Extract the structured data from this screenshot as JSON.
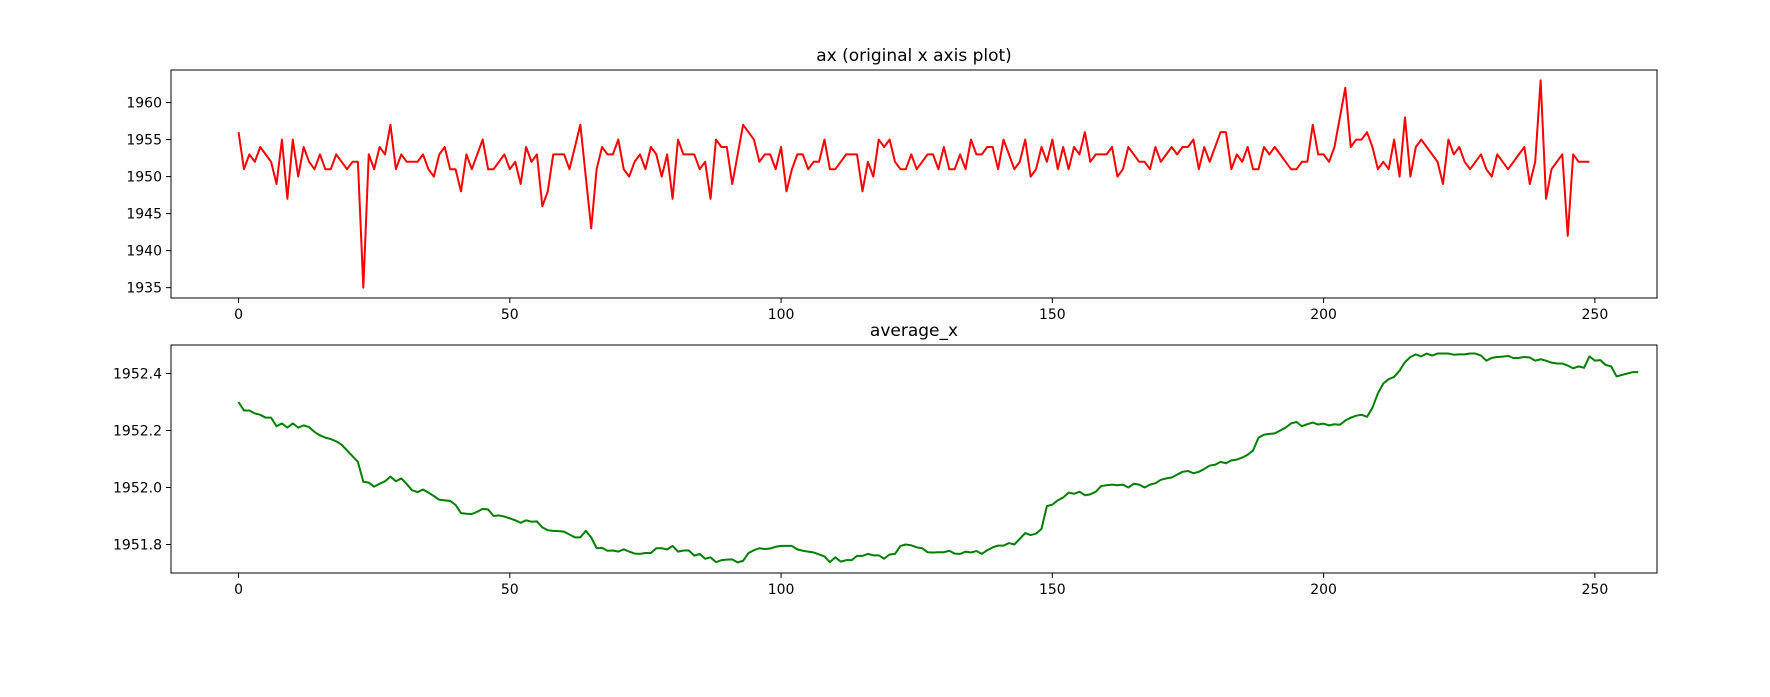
{
  "chart_data": [
    {
      "type": "line",
      "title": "ax (original x axis plot)",
      "xlabel": "",
      "ylabel": "",
      "xlim": [
        -12.45,
        261.45
      ],
      "ylim": [
        1933.6,
        1964.4
      ],
      "xticks": [
        0,
        50,
        100,
        150,
        200,
        250
      ],
      "yticks": [
        1935,
        1940,
        1945,
        1950,
        1955,
        1960
      ],
      "grid": false,
      "series": [
        {
          "color": "#ff0000",
          "x_start": 0,
          "x_step": 1,
          "values": [
            1956,
            1951,
            1953,
            1952,
            1954,
            1953,
            1952,
            1949,
            1955,
            1947,
            1955,
            1950,
            1954,
            1952,
            1951,
            1953,
            1951,
            1951,
            1953,
            1952,
            1951,
            1952,
            1952,
            1935,
            1953,
            1951,
            1954,
            1953,
            1957,
            1951,
            1953,
            1952,
            1952,
            1952,
            1953,
            1951,
            1950,
            1953,
            1954,
            1951,
            1951,
            1948,
            1953,
            1951,
            1953,
            1955,
            1951,
            1951,
            1952,
            1953,
            1951,
            1952,
            1949,
            1954,
            1952,
            1953,
            1946,
            1948,
            1953,
            1953,
            1953,
            1951,
            1954,
            1957,
            1950,
            1943,
            1951,
            1954,
            1953,
            1953,
            1955,
            1951,
            1950,
            1952,
            1953,
            1951,
            1954,
            1953,
            1950,
            1953,
            1947,
            1955,
            1953,
            1953,
            1953,
            1951,
            1952,
            1947,
            1955,
            1954,
            1954,
            1949,
            1953,
            1957,
            1956,
            1955,
            1952,
            1953,
            1953,
            1951,
            1954,
            1948,
            1951,
            1953,
            1953,
            1951,
            1952,
            1952,
            1955,
            1951,
            1951,
            1952,
            1953,
            1953,
            1953,
            1948,
            1952,
            1950,
            1955,
            1954,
            1955,
            1952,
            1951,
            1951,
            1953,
            1951,
            1952,
            1953,
            1953,
            1951,
            1954,
            1951,
            1951,
            1953,
            1951,
            1955,
            1953,
            1953,
            1954,
            1954,
            1951,
            1955,
            1953,
            1951,
            1952,
            1955,
            1950,
            1951,
            1954,
            1952,
            1955,
            1951,
            1954,
            1951,
            1954,
            1953,
            1956,
            1952,
            1953,
            1953,
            1953,
            1954,
            1950,
            1951,
            1954,
            1953,
            1952,
            1952,
            1951,
            1954,
            1952,
            1953,
            1954,
            1953,
            1954,
            1954,
            1955,
            1951,
            1954,
            1952,
            1954,
            1956,
            1956,
            1951,
            1953,
            1952,
            1954,
            1951,
            1951,
            1954,
            1953,
            1954,
            1953,
            1952,
            1951,
            1951,
            1952,
            1952,
            1957,
            1953,
            1953,
            1952,
            1954,
            1958,
            1962,
            1954,
            1955,
            1955,
            1956,
            1954,
            1951,
            1952,
            1951,
            1955,
            1950,
            1958,
            1950,
            1954,
            1955,
            1954,
            1953,
            1952,
            1949,
            1955,
            1953,
            1954,
            1952,
            1951,
            1952,
            1953,
            1951,
            1950,
            1953,
            1952,
            1951,
            1952,
            1953,
            1954,
            1949,
            1952,
            1963,
            1947,
            1951,
            1952,
            1953,
            1942,
            1953,
            1952,
            1952,
            1952
          ]
        }
      ]
    },
    {
      "type": "line",
      "title": "average_x",
      "xlabel": "",
      "ylabel": "",
      "xlim": [
        -12.45,
        261.45
      ],
      "ylim": [
        1951.7,
        1952.5
      ],
      "xticks": [
        0,
        50,
        100,
        150,
        200,
        250
      ],
      "yticks": [
        1951.8,
        1952.0,
        1952.2,
        1952.4
      ],
      "grid": false,
      "series": [
        {
          "color": "#008000",
          "x_start": 0,
          "x_step": 1,
          "values": [
            1952.3,
            1952.27,
            1952.27,
            1952.26,
            1952.255,
            1952.245,
            1952.245,
            1952.215,
            1952.225,
            1952.21,
            1952.225,
            1952.21,
            1952.218,
            1952.212,
            1952.195,
            1952.183,
            1952.175,
            1952.17,
            1952.162,
            1952.15,
            1952.13,
            1952.11,
            1952.09,
            1952.02,
            1952.017,
            1952.003,
            1952.013,
            1952.022,
            1952.038,
            1952.022,
            1952.032,
            1952.012,
            1951.99,
            1951.984,
            1951.993,
            1951.982,
            1951.97,
            1951.957,
            1951.955,
            1951.953,
            1951.939,
            1951.91,
            1951.908,
            1951.907,
            1951.915,
            1951.925,
            1951.923,
            1951.9,
            1951.902,
            1951.898,
            1951.892,
            1951.885,
            1951.876,
            1951.885,
            1951.88,
            1951.881,
            1951.86,
            1951.85,
            1951.848,
            1951.847,
            1951.845,
            1951.835,
            1951.825,
            1951.825,
            1951.848,
            1951.825,
            1951.787,
            1951.788,
            1951.778,
            1951.779,
            1951.775,
            1951.783,
            1951.775,
            1951.768,
            1951.767,
            1951.77,
            1951.77,
            1951.787,
            1951.787,
            1951.783,
            1951.795,
            1951.775,
            1951.779,
            1951.779,
            1951.761,
            1951.767,
            1951.75,
            1951.755,
            1951.738,
            1951.745,
            1951.747,
            1951.748,
            1951.737,
            1951.743,
            1951.77,
            1951.78,
            1951.787,
            1951.784,
            1951.786,
            1951.792,
            1951.795,
            1951.795,
            1951.795,
            1951.783,
            1951.778,
            1951.775,
            1951.772,
            1951.765,
            1951.758,
            1951.738,
            1951.755,
            1951.74,
            1951.745,
            1951.745,
            1951.76,
            1951.76,
            1951.767,
            1951.762,
            1951.762,
            1951.75,
            1951.765,
            1951.767,
            1951.795,
            1951.8,
            1951.797,
            1951.79,
            1951.787,
            1951.773,
            1951.772,
            1951.773,
            1951.773,
            1951.778,
            1951.768,
            1951.767,
            1951.775,
            1951.772,
            1951.777,
            1951.767,
            1951.78,
            1951.79,
            1951.796,
            1951.796,
            1951.805,
            1951.8,
            1951.82,
            1951.84,
            1951.833,
            1951.838,
            1951.855,
            1951.935,
            1951.94,
            1951.955,
            1951.965,
            1951.982,
            1951.978,
            1951.985,
            1951.973,
            1951.976,
            1951.985,
            1952.005,
            1952.008,
            1952.01,
            1952.008,
            1952.01,
            1952.0,
            1952.013,
            1952.01,
            1952.0,
            1952.01,
            1952.015,
            1952.027,
            1952.032,
            1952.035,
            1952.045,
            1952.055,
            1952.058,
            1952.05,
            1952.055,
            1952.065,
            1952.077,
            1952.08,
            1952.09,
            1952.085,
            1952.095,
            1952.098,
            1952.105,
            1952.115,
            1952.13,
            1952.175,
            1952.185,
            1952.188,
            1952.19,
            1952.2,
            1952.21,
            1952.225,
            1952.23,
            1952.215,
            1952.222,
            1952.228,
            1952.221,
            1952.224,
            1952.218,
            1952.222,
            1952.22,
            1952.235,
            1952.245,
            1952.252,
            1952.255,
            1952.248,
            1952.28,
            1952.33,
            1952.365,
            1952.38,
            1952.388,
            1952.41,
            1952.44,
            1952.458,
            1952.467,
            1952.46,
            1952.47,
            1952.463,
            1952.47,
            1952.47,
            1952.47,
            1952.466,
            1952.467,
            1952.467,
            1952.47,
            1952.47,
            1952.463,
            1952.445,
            1952.455,
            1952.458,
            1952.459,
            1952.462,
            1952.454,
            1952.455,
            1952.458,
            1952.456,
            1952.445,
            1952.45,
            1952.445,
            1952.438,
            1952.435,
            1952.435,
            1952.428,
            1952.418,
            1952.425,
            1952.42,
            1952.46,
            1952.445,
            1952.447,
            1952.43,
            1952.425,
            1952.39,
            1952.395,
            1952.4,
            1952.405,
            1952.405
          ]
        }
      ]
    }
  ]
}
